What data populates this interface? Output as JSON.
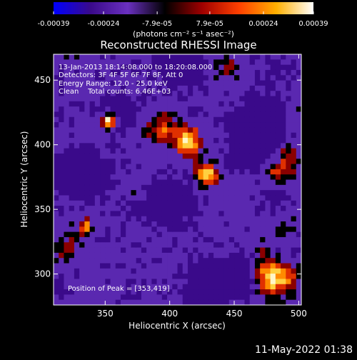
{
  "chart_data": {
    "type": "heatmap",
    "title": "Reconstructed RHESSI Image",
    "xlabel": "Heliocentric X (arcsec)",
    "ylabel": "Heliocentric Y (arcsec)",
    "xlim": [
      310,
      502
    ],
    "ylim": [
      276,
      470
    ],
    "xticks": [
      350,
      400,
      450,
      500
    ],
    "yticks": [
      300,
      350,
      400,
      450
    ],
    "colorbar": {
      "colormap": "RHESSI red-temperature",
      "colors": [
        "#0000ff",
        "#3a0a8a",
        "#6a30c0",
        "#000000",
        "#a00000",
        "#ff4000",
        "#ffb000",
        "#ffffff"
      ],
      "tick_labels": [
        "-0.00039",
        "-0.00024",
        "-7.9e-05",
        "7.9e-05",
        "0.00024",
        "0.00039"
      ],
      "tick_values": [
        -0.00039,
        -0.00024,
        -7.9e-05,
        7.9e-05,
        0.00024,
        0.00039
      ],
      "range": [
        -0.00039,
        0.00039
      ],
      "unit_label": "(photons cm⁻² s⁻¹ asec⁻²)"
    },
    "annotations": {
      "time_range": "13-Jan-2013 18:14:08.000 to 18:20:08.000",
      "detectors": "Detectors: 3F 4F 5F 6F 7F 8F, Att 0",
      "energy_range": "Energy Range: 12.0 - 25.0 keV",
      "clean_info": "Clean    Total counts: 6.46E+03",
      "peak_position": "Position of Peak = [353,419]"
    },
    "grid": false,
    "peak": [
      353,
      419
    ]
  },
  "footer": {
    "date_stamp": "11-May-2022 01:38"
  }
}
